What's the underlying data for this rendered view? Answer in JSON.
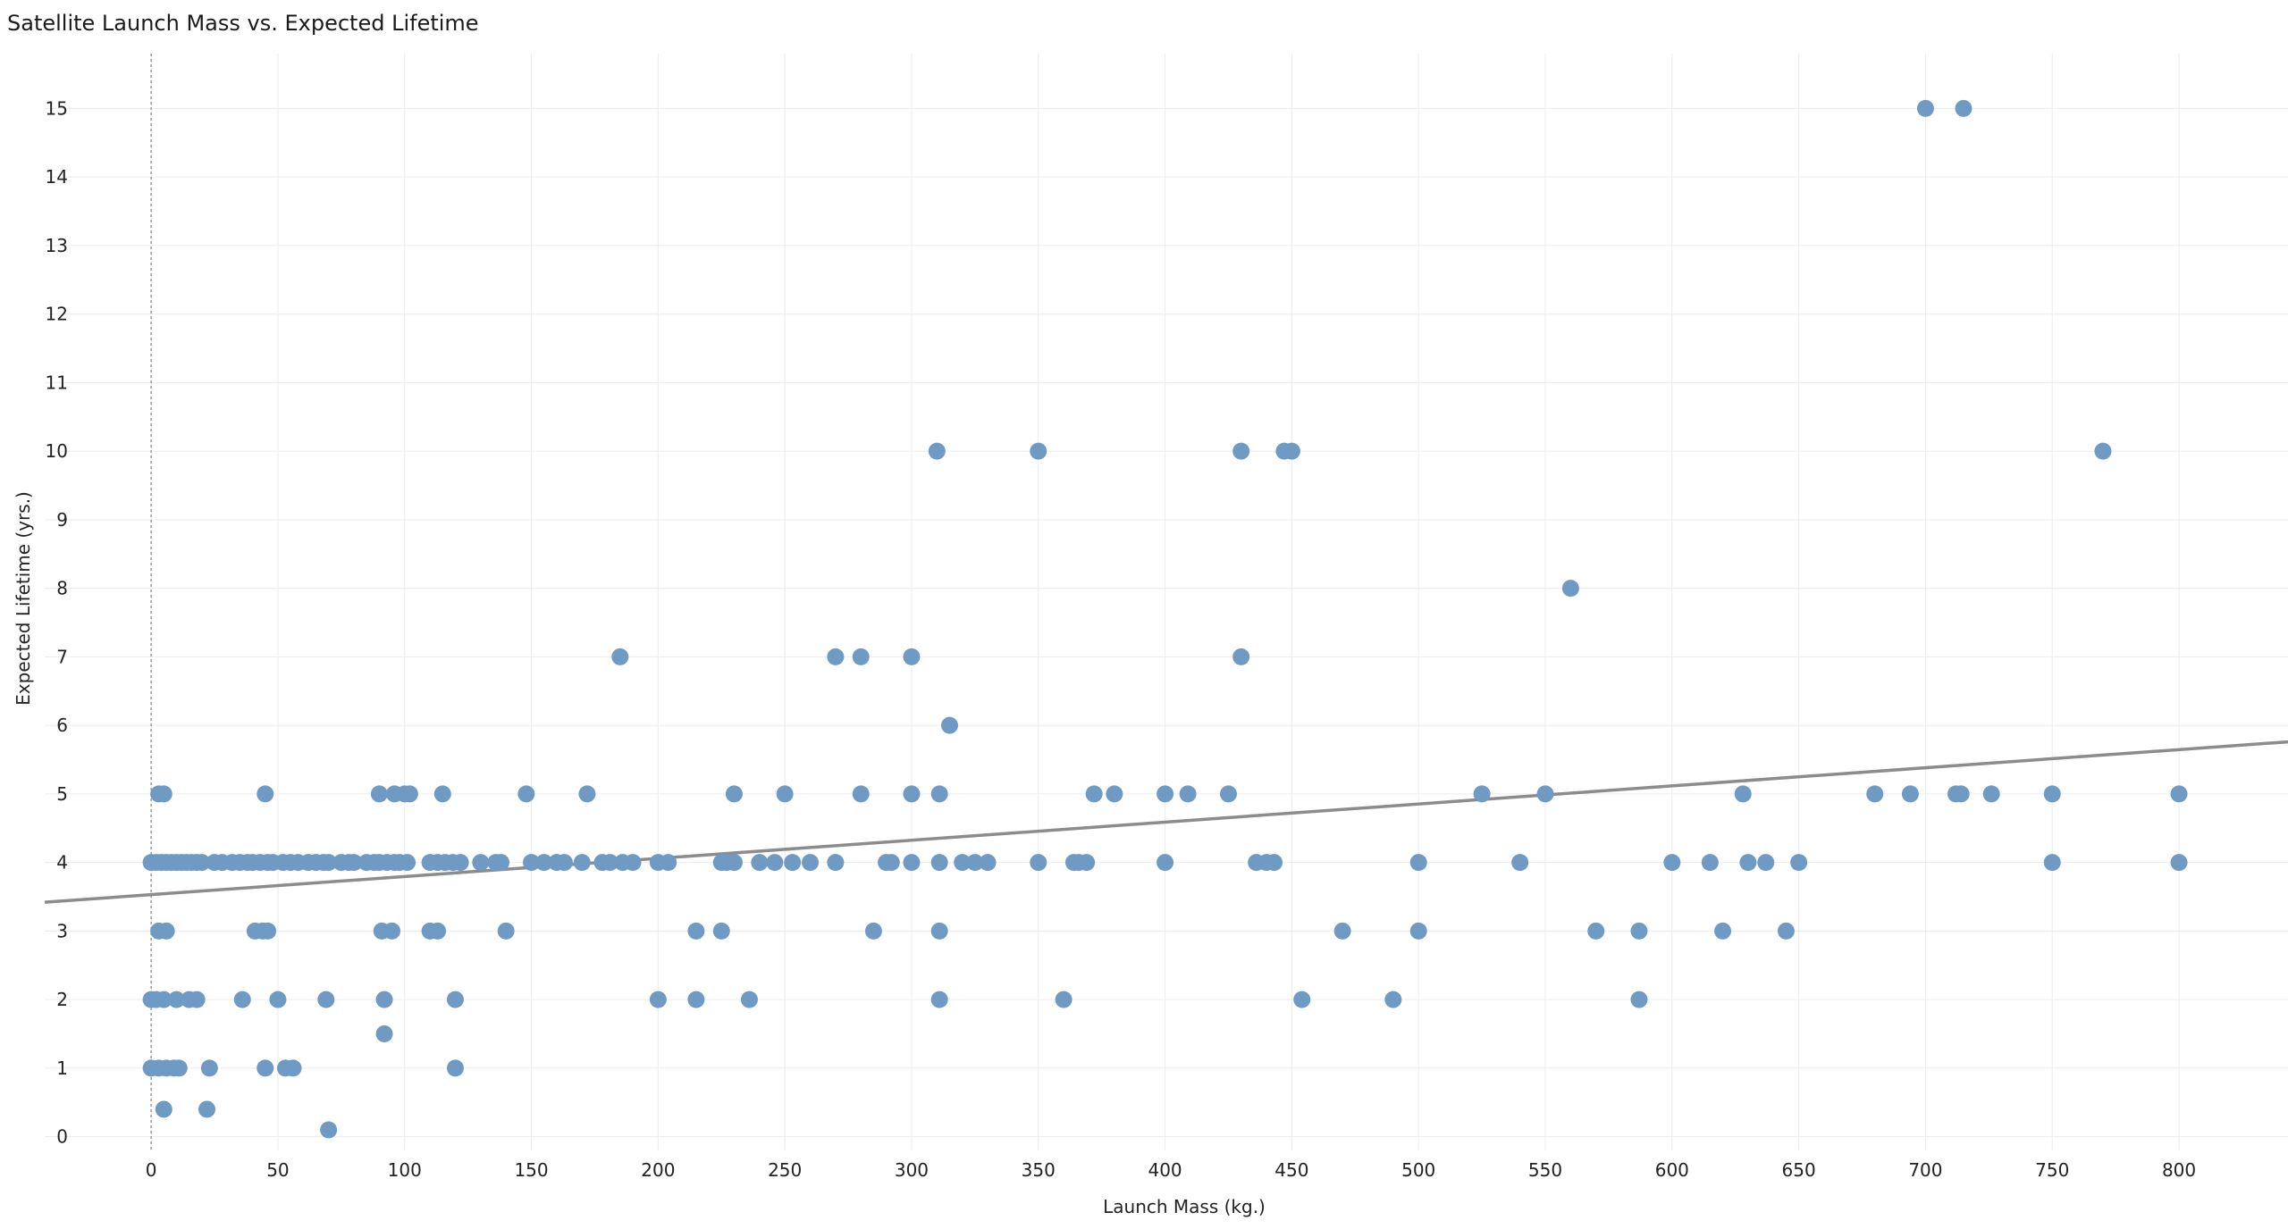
{
  "chart_data": {
    "type": "scatter",
    "title": "Satellite Launch Mass vs. Expected Lifetime",
    "xlabel": "Launch Mass (kg.)",
    "ylabel": "Expected Lifetime (yrs.)",
    "xlim": [
      -42,
      843
    ],
    "ylim": [
      -0.2,
      15.8
    ],
    "xticks": [
      0,
      50,
      100,
      150,
      200,
      250,
      300,
      350,
      400,
      450,
      500,
      550,
      600,
      650,
      700,
      750,
      800
    ],
    "yticks": [
      0,
      1,
      2,
      3,
      4,
      5,
      6,
      7,
      8,
      9,
      10,
      11,
      12,
      13,
      14,
      15
    ],
    "grid": true,
    "zero_reference_line": true,
    "point_color": "#6f9ac3",
    "trend_color": "#8c8c8c",
    "trendline": {
      "x": [
        -42,
        843
      ],
      "y": [
        3.42,
        5.76
      ]
    },
    "points": [
      [
        700,
        15
      ],
      [
        715,
        15
      ],
      [
        310,
        10
      ],
      [
        350,
        10
      ],
      [
        430,
        10
      ],
      [
        447,
        10
      ],
      [
        450,
        10
      ],
      [
        770,
        10
      ],
      [
        560,
        8
      ],
      [
        185,
        7
      ],
      [
        270,
        7
      ],
      [
        280,
        7
      ],
      [
        300,
        7
      ],
      [
        430,
        7
      ],
      [
        315,
        6
      ],
      [
        3,
        5
      ],
      [
        5,
        5
      ],
      [
        45,
        5
      ],
      [
        90,
        5
      ],
      [
        96,
        5
      ],
      [
        100,
        5
      ],
      [
        102,
        5
      ],
      [
        115,
        5
      ],
      [
        148,
        5
      ],
      [
        172,
        5
      ],
      [
        230,
        5
      ],
      [
        250,
        5
      ],
      [
        280,
        5
      ],
      [
        300,
        5
      ],
      [
        311,
        5
      ],
      [
        372,
        5
      ],
      [
        380,
        5
      ],
      [
        400,
        5
      ],
      [
        409,
        5
      ],
      [
        425,
        5
      ],
      [
        525,
        5
      ],
      [
        550,
        5
      ],
      [
        628,
        5
      ],
      [
        680,
        5
      ],
      [
        694,
        5
      ],
      [
        712,
        5
      ],
      [
        714,
        5
      ],
      [
        726,
        5
      ],
      [
        750,
        5
      ],
      [
        800,
        5
      ],
      [
        0,
        4
      ],
      [
        2,
        4
      ],
      [
        4,
        4
      ],
      [
        6,
        4
      ],
      [
        8,
        4
      ],
      [
        10,
        4
      ],
      [
        12,
        4
      ],
      [
        14,
        4
      ],
      [
        16,
        4
      ],
      [
        18,
        4
      ],
      [
        20,
        4
      ],
      [
        25,
        4
      ],
      [
        28,
        4
      ],
      [
        32,
        4
      ],
      [
        35,
        4
      ],
      [
        38,
        4
      ],
      [
        40,
        4
      ],
      [
        43,
        4
      ],
      [
        46,
        4
      ],
      [
        48,
        4
      ],
      [
        52,
        4
      ],
      [
        55,
        4
      ],
      [
        58,
        4
      ],
      [
        62,
        4
      ],
      [
        65,
        4
      ],
      [
        68,
        4
      ],
      [
        70,
        4
      ],
      [
        75,
        4
      ],
      [
        78,
        4
      ],
      [
        80,
        4
      ],
      [
        85,
        4
      ],
      [
        88,
        4
      ],
      [
        90,
        4
      ],
      [
        93,
        4
      ],
      [
        96,
        4
      ],
      [
        98,
        4
      ],
      [
        101,
        4
      ],
      [
        110,
        4
      ],
      [
        113,
        4
      ],
      [
        116,
        4
      ],
      [
        119,
        4
      ],
      [
        122,
        4
      ],
      [
        130,
        4
      ],
      [
        136,
        4
      ],
      [
        138,
        4
      ],
      [
        150,
        4
      ],
      [
        155,
        4
      ],
      [
        160,
        4
      ],
      [
        163,
        4
      ],
      [
        170,
        4
      ],
      [
        178,
        4
      ],
      [
        181,
        4
      ],
      [
        186,
        4
      ],
      [
        190,
        4
      ],
      [
        200,
        4
      ],
      [
        204,
        4
      ],
      [
        225,
        4
      ],
      [
        227,
        4
      ],
      [
        230,
        4
      ],
      [
        240,
        4
      ],
      [
        246,
        4
      ],
      [
        253,
        4
      ],
      [
        260,
        4
      ],
      [
        270,
        4
      ],
      [
        290,
        4
      ],
      [
        292,
        4
      ],
      [
        300,
        4
      ],
      [
        311,
        4
      ],
      [
        320,
        4
      ],
      [
        325,
        4
      ],
      [
        330,
        4
      ],
      [
        350,
        4
      ],
      [
        364,
        4
      ],
      [
        366,
        4
      ],
      [
        369,
        4
      ],
      [
        400,
        4
      ],
      [
        436,
        4
      ],
      [
        440,
        4
      ],
      [
        443,
        4
      ],
      [
        500,
        4
      ],
      [
        540,
        4
      ],
      [
        600,
        4
      ],
      [
        615,
        4
      ],
      [
        630,
        4
      ],
      [
        637,
        4
      ],
      [
        650,
        4
      ],
      [
        750,
        4
      ],
      [
        800,
        4
      ],
      [
        3,
        3
      ],
      [
        6,
        3
      ],
      [
        41,
        3
      ],
      [
        44,
        3
      ],
      [
        46,
        3
      ],
      [
        91,
        3
      ],
      [
        95,
        3
      ],
      [
        110,
        3
      ],
      [
        113,
        3
      ],
      [
        140,
        3
      ],
      [
        215,
        3
      ],
      [
        225,
        3
      ],
      [
        285,
        3
      ],
      [
        311,
        3
      ],
      [
        470,
        3
      ],
      [
        500,
        3
      ],
      [
        570,
        3
      ],
      [
        587,
        3
      ],
      [
        620,
        3
      ],
      [
        645,
        3
      ],
      [
        0,
        2
      ],
      [
        2,
        2
      ],
      [
        5,
        2
      ],
      [
        10,
        2
      ],
      [
        15,
        2
      ],
      [
        18,
        2
      ],
      [
        36,
        2
      ],
      [
        50,
        2
      ],
      [
        69,
        2
      ],
      [
        92,
        2
      ],
      [
        120,
        2
      ],
      [
        200,
        2
      ],
      [
        215,
        2
      ],
      [
        236,
        2
      ],
      [
        311,
        2
      ],
      [
        360,
        2
      ],
      [
        454,
        2
      ],
      [
        490,
        2
      ],
      [
        587,
        2
      ],
      [
        92,
        1.5
      ],
      [
        0,
        1
      ],
      [
        3,
        1
      ],
      [
        6,
        1
      ],
      [
        9,
        1
      ],
      [
        11,
        1
      ],
      [
        23,
        1
      ],
      [
        45,
        1
      ],
      [
        53,
        1
      ],
      [
        56,
        1
      ],
      [
        120,
        1
      ],
      [
        5,
        0.4
      ],
      [
        22,
        0.4
      ],
      [
        70,
        0.1
      ]
    ]
  }
}
